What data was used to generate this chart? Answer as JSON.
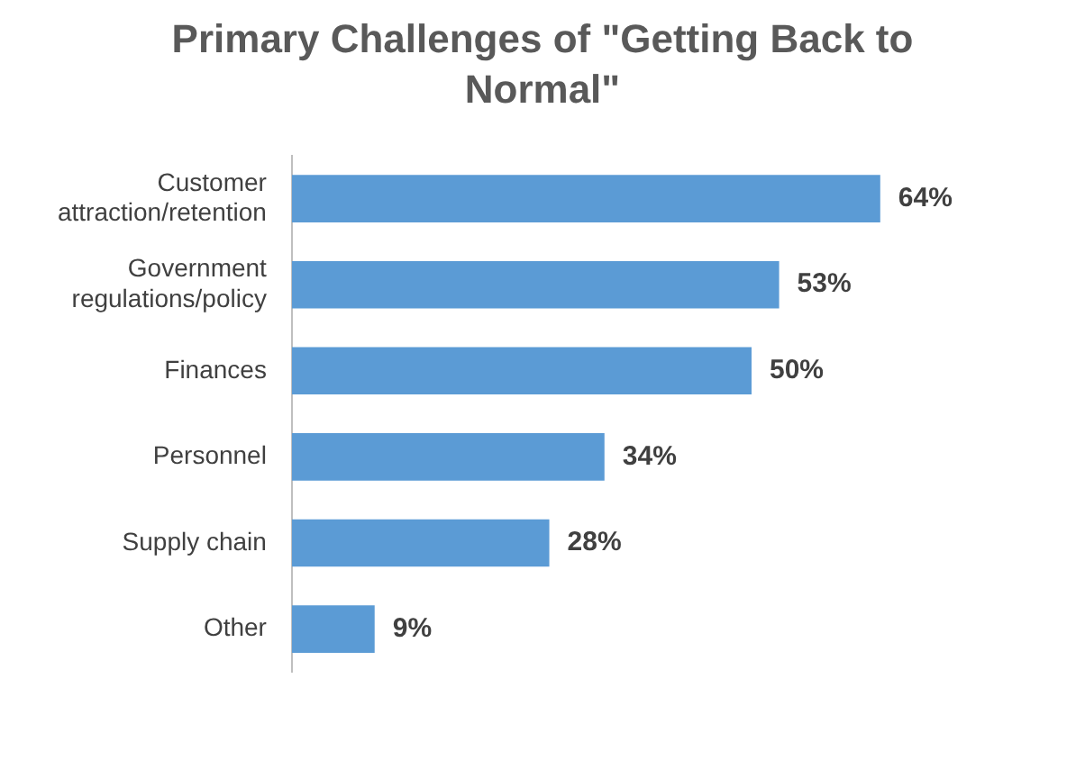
{
  "chart_data": {
    "type": "bar",
    "orientation": "horizontal",
    "title": "Primary Challenges of \"Getting Back to Normal\"",
    "categories": [
      "Customer attraction/retention",
      "Government regulations/policy",
      "Finances",
      "Personnel",
      "Supply chain",
      "Other"
    ],
    "values": [
      64,
      53,
      50,
      34,
      28,
      9
    ],
    "value_labels": [
      "64%",
      "53%",
      "50%",
      "34%",
      "28%",
      "9%"
    ],
    "color": "#5b9bd5"
  }
}
